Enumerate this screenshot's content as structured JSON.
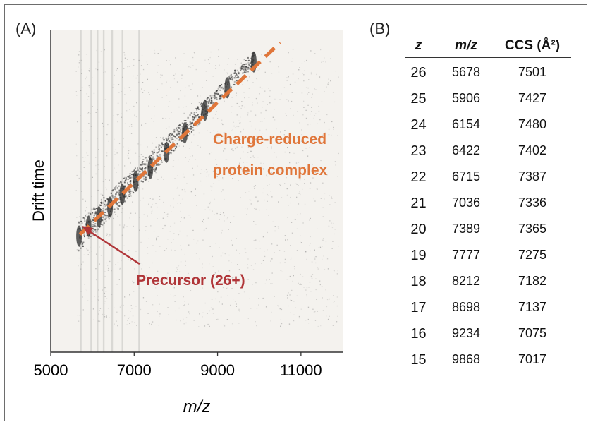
{
  "panels": {
    "a_label": "(A)",
    "b_label": "(B)"
  },
  "chart_data": {
    "type": "scatter",
    "xlabel": "m/z",
    "ylabel": "Drift time",
    "xlim": [
      5000,
      12000
    ],
    "xticks": [
      "5000",
      "7000",
      "9000",
      "11000"
    ],
    "y_tick_labels": false,
    "series": [
      {
        "name": "",
        "x": [
          5678,
          5906,
          6154,
          6422,
          6715,
          7036,
          7389,
          7777,
          8212,
          8698,
          9234,
          9868
        ],
        "y": [
          0.36,
          0.39,
          0.42,
          0.45,
          0.49,
          0.53,
          0.57,
          0.62,
          0.68,
          0.75,
          0.82,
          0.9
        ]
      }
    ],
    "trend_line": {
      "color": "#e0763a",
      "style": "dashed",
      "x": [
        5700,
        10500
      ]
    },
    "annotations": [
      {
        "text": "Charge-reduced protein complex",
        "color": "#e0763a"
      },
      {
        "text": "Precursor (26+)",
        "color": "#b03538"
      }
    ],
    "colors": {
      "points": "#4a4a4a",
      "trend": "#e0763a",
      "arrow": "#b03538"
    }
  },
  "annotations": {
    "charge_reduced_line1": "Charge-reduced",
    "charge_reduced_line2": "protein complex",
    "precursor": "Precursor (26+)"
  },
  "table": {
    "headers": {
      "z": "z",
      "mz": "m/z",
      "ccs": "CCS (Å²)"
    },
    "rows": [
      {
        "z": "26",
        "mz": "5678",
        "ccs": "7501"
      },
      {
        "z": "25",
        "mz": "5906",
        "ccs": "7427"
      },
      {
        "z": "24",
        "mz": "6154",
        "ccs": "7480"
      },
      {
        "z": "23",
        "mz": "6422",
        "ccs": "7402"
      },
      {
        "z": "22",
        "mz": "6715",
        "ccs": "7387"
      },
      {
        "z": "21",
        "mz": "7036",
        "ccs": "7336"
      },
      {
        "z": "20",
        "mz": "7389",
        "ccs": "7365"
      },
      {
        "z": "19",
        "mz": "7777",
        "ccs": "7275"
      },
      {
        "z": "18",
        "mz": "8212",
        "ccs": "7182"
      },
      {
        "z": "17",
        "mz": "8698",
        "ccs": "7137"
      },
      {
        "z": "16",
        "mz": "9234",
        "ccs": "7075"
      },
      {
        "z": "15",
        "mz": "9868",
        "ccs": "7017"
      }
    ]
  }
}
